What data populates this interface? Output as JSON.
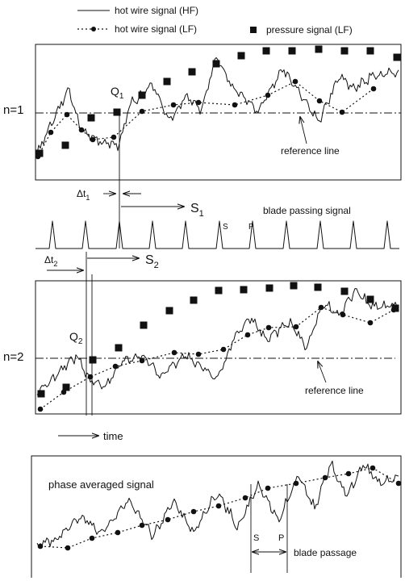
{
  "legend": {
    "hf": "hot wire signal (HF)",
    "lf": "hot wire signal (LF)",
    "pressure": "pressure signal (LF)"
  },
  "panel1": {
    "n_label": "n=1",
    "q_label": "Q",
    "q_sub": "1",
    "reference_label": "reference line"
  },
  "timing1": {
    "dt_label": "Δt",
    "dt_sub": "1",
    "s_label": "S",
    "s_sub": "1"
  },
  "blade_signal": {
    "title": "blade passing signal",
    "s_mark": "S",
    "p_mark": "P"
  },
  "timing2": {
    "dt_label": "Δt",
    "dt_sub": "2",
    "s_label": "S",
    "s_sub": "2"
  },
  "panel2": {
    "n_label": "n=2",
    "q_label": "Q",
    "q_sub": "2",
    "reference_label": "reference line"
  },
  "time_axis": {
    "label": "time"
  },
  "panel3": {
    "title": "phase averaged signal",
    "s_mark": "S",
    "p_mark": "P",
    "passage_label": "blade passage"
  },
  "colors": {
    "ink": "#111111",
    "background": "#ffffff"
  }
}
